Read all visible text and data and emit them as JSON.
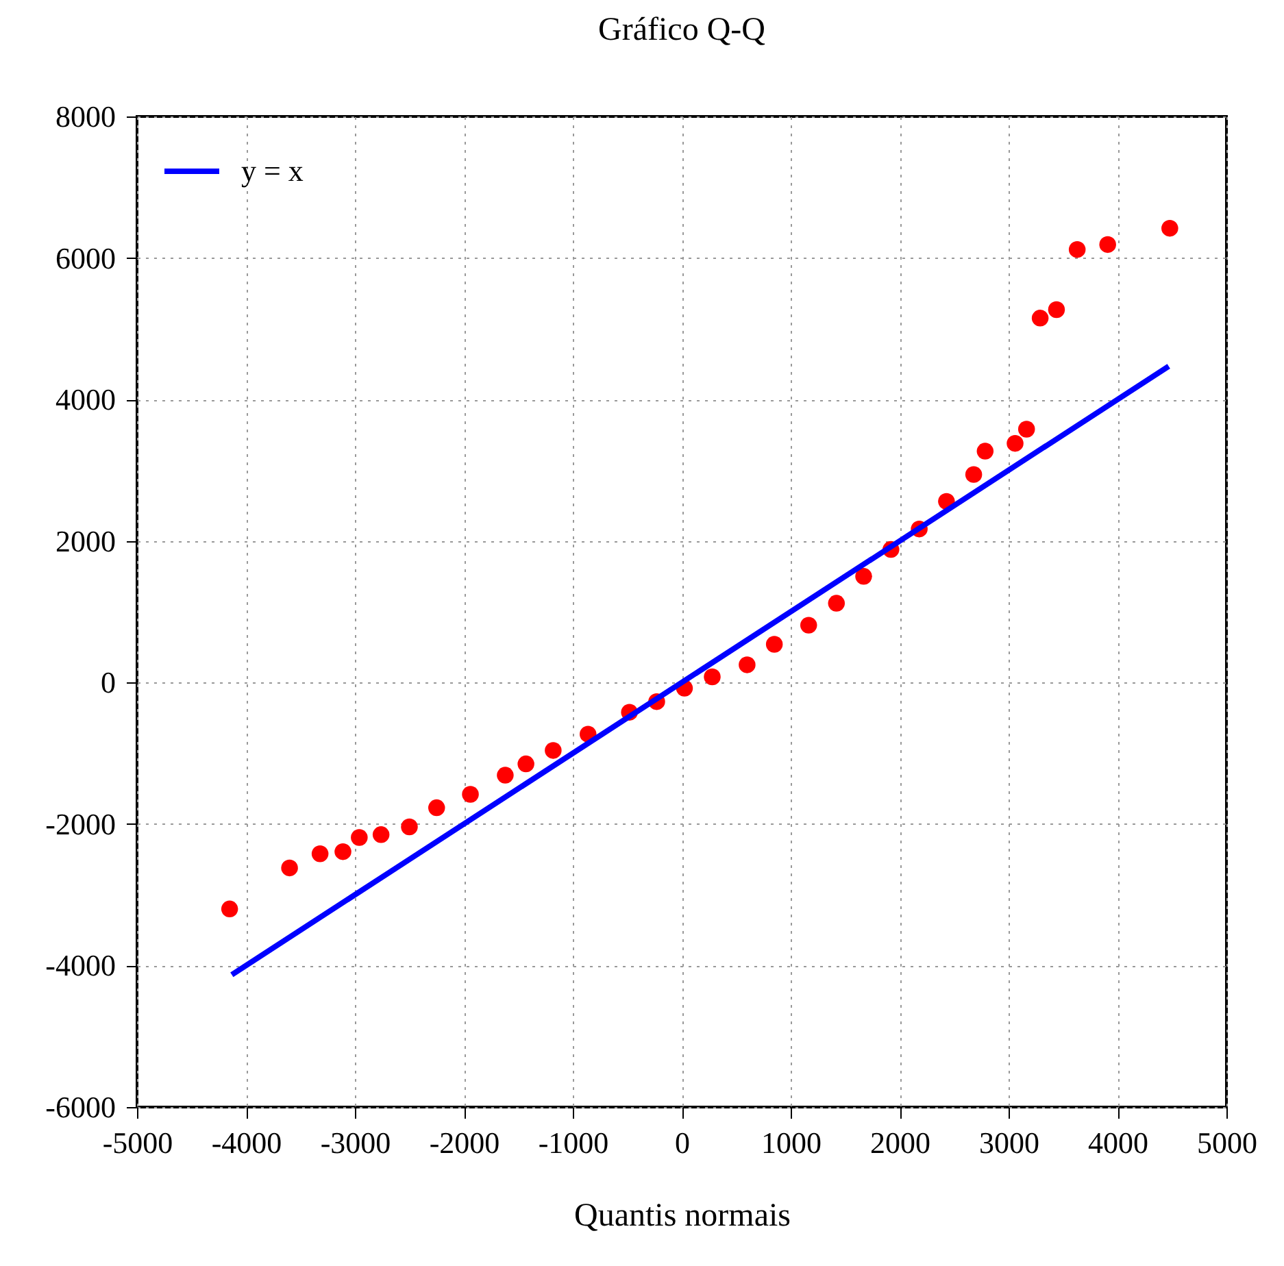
{
  "chart_data": {
    "type": "scatter",
    "title": "Gráfico Q-Q",
    "xlabel": "Quantis normais",
    "xlim": [
      -5000,
      5000
    ],
    "xticks": [
      -5000,
      -4000,
      -3000,
      -2000,
      -1000,
      0,
      1000,
      2000,
      3000,
      4000,
      5000
    ],
    "ylim": [
      -6000,
      8000
    ],
    "yticks": [
      -6000,
      -4000,
      -2000,
      0,
      2000,
      4000,
      6000,
      8000
    ],
    "grid": true,
    "legend": "top left",
    "series": [
      {
        "marker": "circle",
        "color": "#ff0000",
        "x": [
          -4150,
          -3600,
          -3320,
          -3110,
          -2960,
          -2760,
          -2500,
          -2250,
          -1940,
          -1620,
          -1430,
          -1180,
          -860,
          -480,
          -230,
          25,
          280,
          600,
          850,
          1165,
          1420,
          1670,
          1920,
          2180,
          2430,
          2680,
          2785,
          3060,
          3165,
          3290,
          3440,
          3630,
          3910,
          4480
        ],
        "values": [
          -3200,
          -2620,
          -2420,
          -2390,
          -2190,
          -2150,
          -2040,
          -1770,
          -1580,
          -1310,
          -1150,
          -960,
          -730,
          -420,
          -270,
          -80,
          80,
          250,
          540,
          810,
          1120,
          1500,
          1880,
          2170,
          2560,
          2940,
          3270,
          3380,
          3580,
          5150,
          5270,
          6120,
          6190,
          6420
        ]
      },
      {
        "type": "line",
        "name": "y = x",
        "color": "#0000ff",
        "line_style": "solid",
        "x": [
          -4130,
          4470
        ],
        "values": [
          -4130,
          4470
        ]
      }
    ]
  }
}
